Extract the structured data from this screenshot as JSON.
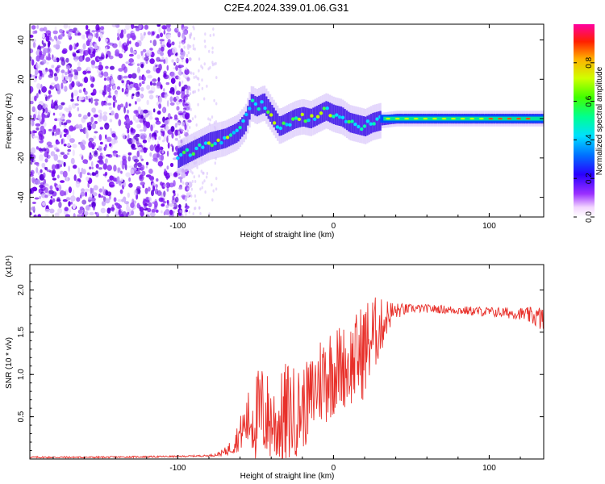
{
  "title": "C2E4.2024.339.01.06.G31",
  "chart_data": [
    {
      "type": "heatmap",
      "name": "spectrogram",
      "xlabel": "Height of straight line (km)",
      "ylabel": "Frequency (Hz)",
      "xlim": [
        -195,
        135
      ],
      "ylim": [
        -50,
        48
      ],
      "xticks": [
        -100,
        0,
        100
      ],
      "yticks": [
        -40,
        -20,
        0,
        20,
        40
      ],
      "colorbar": {
        "label": "Normalized spectral amplitude",
        "range": [
          0.0,
          1.0
        ],
        "ticks": [
          0.0,
          0.2,
          0.4,
          0.6,
          0.8
        ],
        "tick_labels": [
          "0.0",
          "0.2",
          "0.4",
          "0.6",
          "0.8"
        ]
      },
      "noise_region_x": [
        -195,
        -100
      ],
      "signal_trace": {
        "x": [
          -100,
          -90,
          -80,
          -70,
          -62,
          -57,
          -53,
          -50,
          -45,
          -40,
          -35,
          -30,
          -25,
          -20,
          -15,
          -10,
          -5,
          0,
          5,
          10,
          15,
          20,
          25,
          30,
          40,
          60,
          80,
          100,
          120,
          135
        ],
        "y": [
          -20,
          -16,
          -12,
          -10,
          -7,
          -2,
          8,
          6,
          8,
          2,
          -4,
          -2,
          0,
          1,
          0,
          2,
          4,
          2,
          1,
          -2,
          -3,
          -4,
          -2,
          -1,
          0,
          0,
          0,
          0,
          0,
          0
        ]
      }
    },
    {
      "type": "line",
      "name": "snr",
      "xlabel": "Height of straight line (km)",
      "ylabel": "SNR (10 * v/v)",
      "y_multiplier": "(x10⁴)",
      "xlim": [
        -195,
        135
      ],
      "ylim": [
        0,
        2.3
      ],
      "xticks": [
        -100,
        0,
        100
      ],
      "yticks": [
        0.5,
        1.0,
        1.5,
        2.0
      ],
      "ytick_labels": [
        "0.5",
        "1.0",
        "1.5",
        "2.0"
      ],
      "series": [
        {
          "name": "SNR",
          "color": "#e8302a",
          "x": [
            -195,
            -150,
            -100,
            -80,
            -75,
            -70,
            -65,
            -60,
            -55,
            -50,
            -45,
            -40,
            -35,
            -30,
            -25,
            -20,
            -15,
            -10,
            -5,
            0,
            5,
            10,
            15,
            20,
            25,
            30,
            35,
            40,
            50,
            60,
            80,
            100,
            120,
            130,
            135
          ],
          "mean": [
            0.02,
            0.02,
            0.03,
            0.04,
            0.05,
            0.08,
            0.15,
            0.3,
            0.45,
            0.5,
            0.55,
            0.45,
            0.4,
            0.5,
            0.55,
            0.6,
            0.7,
            0.9,
            1.0,
            1.05,
            1.1,
            1.1,
            1.2,
            1.3,
            1.45,
            1.55,
            1.7,
            1.75,
            1.78,
            1.78,
            1.76,
            1.74,
            1.72,
            1.68,
            1.65
          ],
          "amp": [
            0.01,
            0.01,
            0.01,
            0.01,
            0.02,
            0.05,
            0.1,
            0.2,
            0.35,
            0.55,
            0.6,
            0.5,
            0.55,
            0.7,
            0.55,
            0.5,
            0.5,
            0.55,
            0.6,
            0.55,
            0.5,
            0.5,
            0.55,
            0.6,
            0.5,
            0.35,
            0.2,
            0.1,
            0.05,
            0.05,
            0.05,
            0.06,
            0.07,
            0.12,
            0.18
          ]
        }
      ]
    }
  ]
}
